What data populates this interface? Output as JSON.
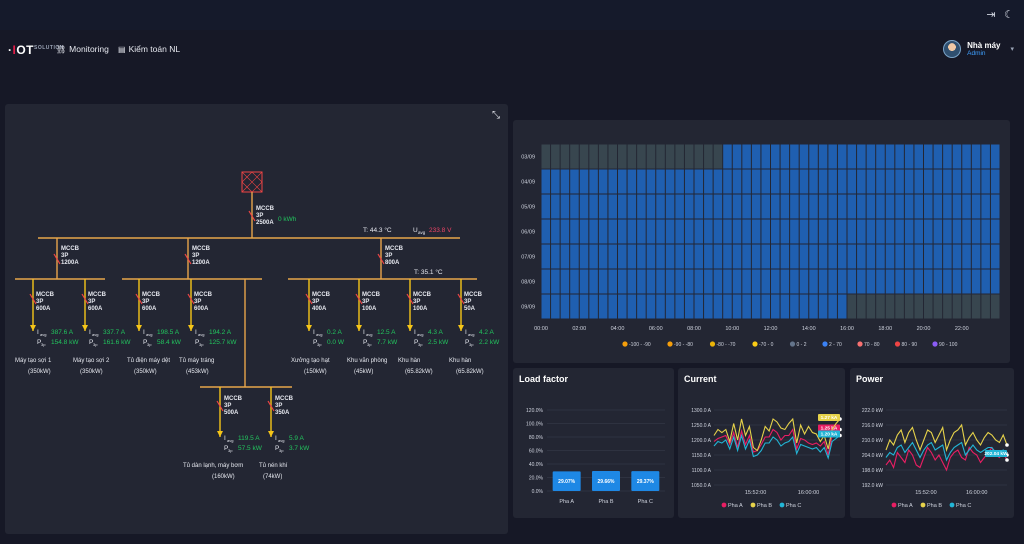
{
  "app": {
    "logo_text": "IOT",
    "logo_suffix": "SOLUTION"
  },
  "nav": {
    "items": [
      {
        "label": "Monitoring",
        "icon": "sitemap-icon"
      },
      {
        "label": "Kiểm toán NL",
        "icon": "document-icon"
      }
    ]
  },
  "user": {
    "name": "Nhà máy",
    "role": "Admin"
  },
  "diagram": {
    "main_mccb": {
      "type": "MCCB",
      "poles": "3P",
      "rating": "2500A",
      "energy": "0 kWh"
    },
    "temp_main": "T: 44.3 °C",
    "uavg": "233.8 V",
    "temp_right": "T: 35.1 °C",
    "mccb_a": {
      "type": "MCCB",
      "poles": "3P",
      "rating": "1200A"
    },
    "mccb_b": {
      "type": "MCCB",
      "poles": "3P",
      "rating": "1200A"
    },
    "mccb_c": {
      "type": "MCCB",
      "poles": "3P",
      "rating": "800A"
    },
    "loads": [
      {
        "type": "MCCB",
        "poles": "3P",
        "rating": "600A",
        "i": "387.6 A",
        "p": "154.8 kW",
        "name": "Máy tạo sợi 1",
        "cap": "(350kW)"
      },
      {
        "type": "MCCB",
        "poles": "3P",
        "rating": "600A",
        "i": "337.7 A",
        "p": "161.6 kW",
        "name": "Máy tạo sợi 2",
        "cap": "(350kW)"
      },
      {
        "type": "MCCB",
        "poles": "3P",
        "rating": "600A",
        "i": "198.5 A",
        "p": "58.4 kW",
        "name": "Tủ điện máy dệt",
        "cap": "(350kW)"
      },
      {
        "type": "MCCB",
        "poles": "3P",
        "rating": "600A",
        "i": "194.2 A",
        "p": "125.7 kW",
        "name": "Tủ máy tráng",
        "cap": "(453kW)"
      },
      {
        "type": "MCCB",
        "poles": "3P",
        "rating": "400A",
        "i": "0.2 A",
        "p": "0.0 W",
        "name": "Xưởng tạo hạt",
        "cap": "(150kW)"
      },
      {
        "type": "MCCB",
        "poles": "3P",
        "rating": "100A",
        "i": "12.5 A",
        "p": "7.7 kW",
        "name": "Khu văn phòng",
        "cap": "(45kW)"
      },
      {
        "type": "MCCB",
        "poles": "3P",
        "rating": "100A",
        "i": "4.3 A",
        "p": "2.5 kW",
        "name": "Khu hàn",
        "cap": "(65.82kW)"
      },
      {
        "type": "MCCB",
        "poles": "3P",
        "rating": "50A",
        "i": "4.2 A",
        "p": "2.2 kW",
        "name": "Khu hàn",
        "cap": "(65.82kW)"
      }
    ],
    "sub_loads": [
      {
        "type": "MCCB",
        "poles": "3P",
        "rating": "500A",
        "i": "119.5 A",
        "p": "57.5 kW",
        "name": "Tủ dàn lạnh, máy bơm",
        "cap": "(160kW)"
      },
      {
        "type": "MCCB",
        "poles": "3P",
        "rating": "350A",
        "i": "5.9 A",
        "p": "3.7 kW",
        "name": "Tủ nén khí",
        "cap": "(74kW)"
      }
    ],
    "i_label": "I",
    "i_sub": "avg",
    "p_label": "P",
    "p_sub": "3p",
    "u_label": "U",
    "u_sub": "avg"
  },
  "heatmap": {
    "rows": [
      "03/09",
      "04/09",
      "05/09",
      "06/09",
      "07/09",
      "08/09",
      "09/09"
    ],
    "xticks": [
      "00:00",
      "02:00",
      "04:00",
      "06:00",
      "08:00",
      "10:00",
      "12:00",
      "14:00",
      "16:00",
      "18:00",
      "20:00",
      "22:00"
    ],
    "legend": [
      {
        "label": "-100 - -90",
        "color": "#f59e0b"
      },
      {
        "label": "-90 - -80",
        "color": "#f59e0b"
      },
      {
        "label": "-80 - -70",
        "color": "#eab308"
      },
      {
        "label": "-70 - 0",
        "color": "#facc15"
      },
      {
        "label": "0 - 2",
        "color": "#64748b"
      },
      {
        "label": "2 - 70",
        "color": "#3b82f6"
      },
      {
        "label": "70 - 80",
        "color": "#f87171"
      },
      {
        "label": "80 - 90",
        "color": "#ef4444"
      },
      {
        "label": "90 - 100",
        "color": "#8b5cf6"
      }
    ]
  },
  "chart_data": [
    {
      "type": "heatmap",
      "title": "",
      "y": [
        "03/09",
        "04/09",
        "05/09",
        "06/09",
        "07/09",
        "08/09",
        "09/09"
      ],
      "x_range": [
        "00:00",
        "24:00"
      ],
      "cells_per_row": 48,
      "note_values": "03/09 grey (0 - 2) until ~09:30 then blue (2 - 70); 04/09–08/09 blue (2 - 70); 09/09 blue until ~16:00 then grey (0 - 2)",
      "row_gray_until_hour": [
        9.5,
        0,
        0,
        0,
        0,
        0,
        0
      ],
      "row_gray_from_hour": [
        24,
        24,
        24,
        24,
        24,
        24,
        16
      ]
    },
    {
      "type": "bar",
      "title": "Load factor",
      "categories": [
        "Pha A",
        "Pha B",
        "Pha C"
      ],
      "values": [
        29.07,
        29.66,
        29.37
      ],
      "value_labels": [
        "29.07%",
        "29.66%",
        "29.37%"
      ],
      "yticks": [
        "0.0%",
        "20.0%",
        "40.0%",
        "60.0%",
        "80.0%",
        "100.0%",
        "120.0%"
      ],
      "ylim": [
        0,
        120
      ],
      "color": "#1e88e5"
    },
    {
      "type": "line",
      "title": "Current",
      "yticks": [
        "1050.0 A",
        "1100.0 A",
        "1150.0 A",
        "1200.0 A",
        "1250.0 A",
        "1300.0 A"
      ],
      "ylim": [
        1050,
        1300
      ],
      "xticks": [
        "15:52:00",
        "16:00:00"
      ],
      "series": [
        {
          "name": "Pha A",
          "color": "#e91e63",
          "values": [
            1195,
            1205,
            1210,
            1215,
            1185,
            1225,
            1175,
            1230,
            1185,
            1215,
            1160,
            1165,
            1185,
            1210,
            1210,
            1235,
            1225,
            1200,
            1215,
            1215,
            1235,
            1170,
            1205,
            1200,
            1190,
            1185,
            1190,
            1180,
            1195,
            1150,
            1215,
            1225,
            1235
          ]
        },
        {
          "name": "Pha B",
          "color": "#e6d24a",
          "values": [
            1215,
            1235,
            1225,
            1235,
            1195,
            1255,
            1200,
            1270,
            1215,
            1245,
            1175,
            1165,
            1200,
            1245,
            1230,
            1270,
            1260,
            1240,
            1235,
            1255,
            1270,
            1190,
            1250,
            1220,
            1245,
            1225,
            1220,
            1195,
            1215,
            1170,
            1235,
            1255,
            1270
          ]
        },
        {
          "name": "Pha C",
          "color": "#22b5d6",
          "values": [
            1180,
            1195,
            1190,
            1200,
            1170,
            1210,
            1165,
            1215,
            1170,
            1200,
            1145,
            1150,
            1165,
            1190,
            1190,
            1210,
            1200,
            1180,
            1190,
            1195,
            1210,
            1155,
            1185,
            1180,
            1175,
            1170,
            1175,
            1160,
            1175,
            1140,
            1195,
            1205,
            1215
          ]
        }
      ],
      "tooltip": [
        "1.25 kA",
        "1.27 kA",
        "1.20 kA"
      ]
    },
    {
      "type": "line",
      "title": "Power",
      "yticks": [
        "192.0 kW",
        "198.0 kW",
        "204.0 kW",
        "210.0 kW",
        "216.0 kW",
        "222.0 kW"
      ],
      "ylim": [
        192,
        222
      ],
      "xticks": [
        "15:52:00",
        "16:00:00"
      ],
      "series": [
        {
          "name": "Pha A",
          "color": "#e91e63",
          "values": [
            200,
            202,
            199,
            205,
            203,
            201,
            206,
            204,
            200,
            199,
            203,
            207,
            205,
            202,
            204,
            201,
            198,
            203,
            205,
            206,
            203,
            202,
            207,
            205,
            204,
            201,
            203,
            205,
            207,
            204,
            203,
            205,
            202
          ]
        },
        {
          "name": "Pha B",
          "color": "#e6d24a",
          "values": [
            206,
            210,
            208,
            212,
            214,
            209,
            213,
            215,
            210,
            206,
            210,
            214,
            213,
            209,
            212,
            215,
            206,
            210,
            213,
            214,
            216,
            208,
            211,
            213,
            210,
            208,
            211,
            213,
            212,
            210,
            209,
            212,
            208
          ]
        },
        {
          "name": "Pha C",
          "color": "#22b5d6",
          "values": [
            203,
            205,
            204,
            207,
            208,
            205,
            207,
            209,
            206,
            203,
            206,
            208,
            209,
            206,
            207,
            208,
            202,
            205,
            207,
            208,
            209,
            204,
            206,
            208,
            206,
            205,
            206,
            207,
            207,
            205,
            205,
            206,
            204
          ]
        }
      ],
      "tooltip": [
        "",
        "",
        "202.04 kW"
      ]
    }
  ]
}
